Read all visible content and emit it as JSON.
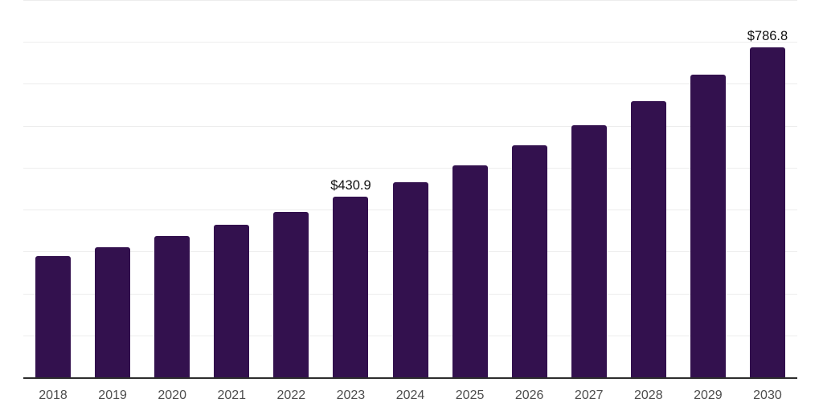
{
  "chart_data": {
    "type": "bar",
    "title": "",
    "xlabel": "",
    "ylabel": "",
    "categories": [
      "2018",
      "2019",
      "2020",
      "2021",
      "2022",
      "2023",
      "2024",
      "2025",
      "2026",
      "2027",
      "2028",
      "2029",
      "2030"
    ],
    "values": [
      290.1,
      309.7,
      337.8,
      363.6,
      394.4,
      430.9,
      466.1,
      505.2,
      552.7,
      601.4,
      657.9,
      722.0,
      786.8
    ],
    "value_labels": {
      "2023": "$430.9",
      "2030": "$786.8"
    },
    "currency_prefix": "$",
    "ylim": [
      0,
      900
    ],
    "gridline_interval": 100,
    "grid": "horizontal-only",
    "legend": "none",
    "y_axis_labels_visible": false
  },
  "colors": {
    "bar": "#33114E",
    "gridline": "#EDEDED",
    "axis_line": "#2D2D2D",
    "x_tick_label": "#4D4D4D",
    "value_label": "#111111",
    "background": "#FFFFFF"
  }
}
